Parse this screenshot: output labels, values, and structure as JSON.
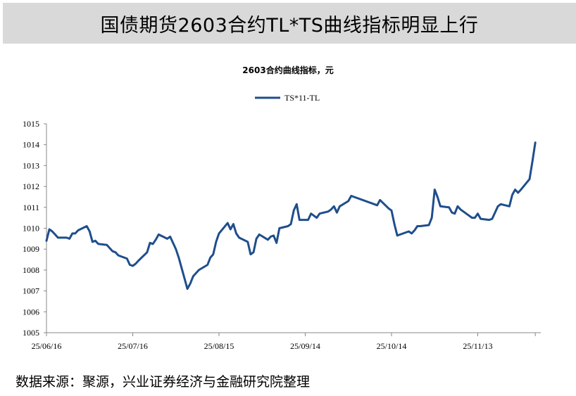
{
  "header": {
    "title": "国债期货2603合约TL*TS曲线指标明显上行"
  },
  "footer": {
    "source": "数据来源：聚源，兴业证券经济与金融研究院整理"
  },
  "colors": {
    "series": "#1f4e8c",
    "axis": "#888888",
    "header_bg": "#d9d9d9"
  },
  "chart_data": {
    "type": "line",
    "title": "2603合约曲线指标，元",
    "xlabel": "",
    "ylabel": "",
    "ylim": [
      1005,
      1015
    ],
    "yticks": [
      1005,
      1006,
      1007,
      1008,
      1009,
      1010,
      1011,
      1012,
      1013,
      1014,
      1015
    ],
    "xticks": [
      "25/06/16",
      "25/07/16",
      "25/08/15",
      "25/09/14",
      "25/10/14",
      "25/11/13"
    ],
    "legend": {
      "position": "top-center"
    },
    "grid": false,
    "series": [
      {
        "name": "TS*11-TL",
        "points": [
          [
            "2025-06-16",
            1009.4
          ],
          [
            "2025-06-17",
            1009.95
          ],
          [
            "2025-06-18",
            1009.85
          ],
          [
            "2025-06-19",
            1009.7
          ],
          [
            "2025-06-20",
            1009.55
          ],
          [
            "2025-06-23",
            1009.55
          ],
          [
            "2025-06-24",
            1009.5
          ],
          [
            "2025-06-25",
            1009.75
          ],
          [
            "2025-06-26",
            1009.75
          ],
          [
            "2025-06-27",
            1009.9
          ],
          [
            "2025-06-30",
            1010.1
          ],
          [
            "2025-07-01",
            1009.85
          ],
          [
            "2025-07-02",
            1009.35
          ],
          [
            "2025-07-03",
            1009.4
          ],
          [
            "2025-07-04",
            1009.25
          ],
          [
            "2025-07-07",
            1009.2
          ],
          [
            "2025-07-08",
            1009.05
          ],
          [
            "2025-07-09",
            1008.9
          ],
          [
            "2025-07-10",
            1008.85
          ],
          [
            "2025-07-11",
            1008.7
          ],
          [
            "2025-07-14",
            1008.55
          ],
          [
            "2025-07-15",
            1008.25
          ],
          [
            "2025-07-16",
            1008.2
          ],
          [
            "2025-07-17",
            1008.3
          ],
          [
            "2025-07-18",
            1008.45
          ],
          [
            "2025-07-21",
            1008.85
          ],
          [
            "2025-07-22",
            1009.3
          ],
          [
            "2025-07-23",
            1009.25
          ],
          [
            "2025-07-24",
            1009.45
          ],
          [
            "2025-07-25",
            1009.7
          ],
          [
            "2025-07-28",
            1009.5
          ],
          [
            "2025-07-29",
            1009.6
          ],
          [
            "2025-07-30",
            1009.3
          ],
          [
            "2025-07-31",
            1009.0
          ],
          [
            "2025-08-01",
            1008.6
          ],
          [
            "2025-08-04",
            1007.1
          ],
          [
            "2025-08-05",
            1007.35
          ],
          [
            "2025-08-06",
            1007.7
          ],
          [
            "2025-08-07",
            1007.85
          ],
          [
            "2025-08-08",
            1008.0
          ],
          [
            "2025-08-11",
            1008.25
          ],
          [
            "2025-08-12",
            1008.6
          ],
          [
            "2025-08-13",
            1008.75
          ],
          [
            "2025-08-14",
            1009.35
          ],
          [
            "2025-08-15",
            1009.75
          ],
          [
            "2025-08-18",
            1010.25
          ],
          [
            "2025-08-19",
            1009.95
          ],
          [
            "2025-08-20",
            1010.2
          ],
          [
            "2025-08-21",
            1009.75
          ],
          [
            "2025-08-22",
            1009.55
          ],
          [
            "2025-08-25",
            1009.35
          ],
          [
            "2025-08-26",
            1008.75
          ],
          [
            "2025-08-27",
            1008.85
          ],
          [
            "2025-08-28",
            1009.5
          ],
          [
            "2025-08-29",
            1009.7
          ],
          [
            "2025-09-01",
            1009.45
          ],
          [
            "2025-09-02",
            1009.6
          ],
          [
            "2025-09-03",
            1009.65
          ],
          [
            "2025-09-04",
            1009.3
          ],
          [
            "2025-09-05",
            1010.0
          ],
          [
            "2025-09-08",
            1010.1
          ],
          [
            "2025-09-09",
            1010.2
          ],
          [
            "2025-09-10",
            1010.85
          ],
          [
            "2025-09-11",
            1011.15
          ],
          [
            "2025-09-12",
            1010.4
          ],
          [
            "2025-09-15",
            1010.4
          ],
          [
            "2025-09-16",
            1010.7
          ],
          [
            "2025-09-17",
            1010.6
          ],
          [
            "2025-09-18",
            1010.5
          ],
          [
            "2025-09-19",
            1010.7
          ],
          [
            "2025-09-22",
            1010.8
          ],
          [
            "2025-09-23",
            1010.9
          ],
          [
            "2025-09-24",
            1011.05
          ],
          [
            "2025-09-25",
            1010.75
          ],
          [
            "2025-09-26",
            1011.05
          ],
          [
            "2025-09-29",
            1011.3
          ],
          [
            "2025-09-30",
            1011.55
          ],
          [
            "2025-10-09",
            1011.1
          ],
          [
            "2025-10-10",
            1011.35
          ],
          [
            "2025-10-13",
            1010.95
          ],
          [
            "2025-10-14",
            1010.85
          ],
          [
            "2025-10-15",
            1010.2
          ],
          [
            "2025-10-16",
            1009.65
          ],
          [
            "2025-10-17",
            1009.7
          ],
          [
            "2025-10-20",
            1009.85
          ],
          [
            "2025-10-21",
            1009.75
          ],
          [
            "2025-10-22",
            1009.9
          ],
          [
            "2025-10-23",
            1010.1
          ],
          [
            "2025-10-24",
            1010.1
          ],
          [
            "2025-10-27",
            1010.15
          ],
          [
            "2025-10-28",
            1010.5
          ],
          [
            "2025-10-29",
            1011.85
          ],
          [
            "2025-10-30",
            1011.5
          ],
          [
            "2025-10-31",
            1011.05
          ],
          [
            "2025-11-03",
            1011.0
          ],
          [
            "2025-11-04",
            1010.75
          ],
          [
            "2025-11-05",
            1010.7
          ],
          [
            "2025-11-06",
            1011.05
          ],
          [
            "2025-11-07",
            1010.9
          ],
          [
            "2025-11-10",
            1010.6
          ],
          [
            "2025-11-11",
            1010.5
          ],
          [
            "2025-11-12",
            1010.5
          ],
          [
            "2025-11-13",
            1010.7
          ],
          [
            "2025-11-14",
            1010.45
          ],
          [
            "2025-11-17",
            1010.4
          ],
          [
            "2025-11-18",
            1010.45
          ],
          [
            "2025-11-19",
            1010.75
          ],
          [
            "2025-11-20",
            1011.05
          ],
          [
            "2025-11-21",
            1011.15
          ],
          [
            "2025-11-24",
            1011.05
          ],
          [
            "2025-11-25",
            1011.6
          ],
          [
            "2025-11-26",
            1011.85
          ],
          [
            "2025-11-27",
            1011.7
          ],
          [
            "2025-11-28",
            1011.85
          ],
          [
            "2025-12-01",
            1012.35
          ],
          [
            "2025-12-02",
            1013.2
          ],
          [
            "2025-12-03",
            1014.1
          ]
        ]
      }
    ]
  }
}
